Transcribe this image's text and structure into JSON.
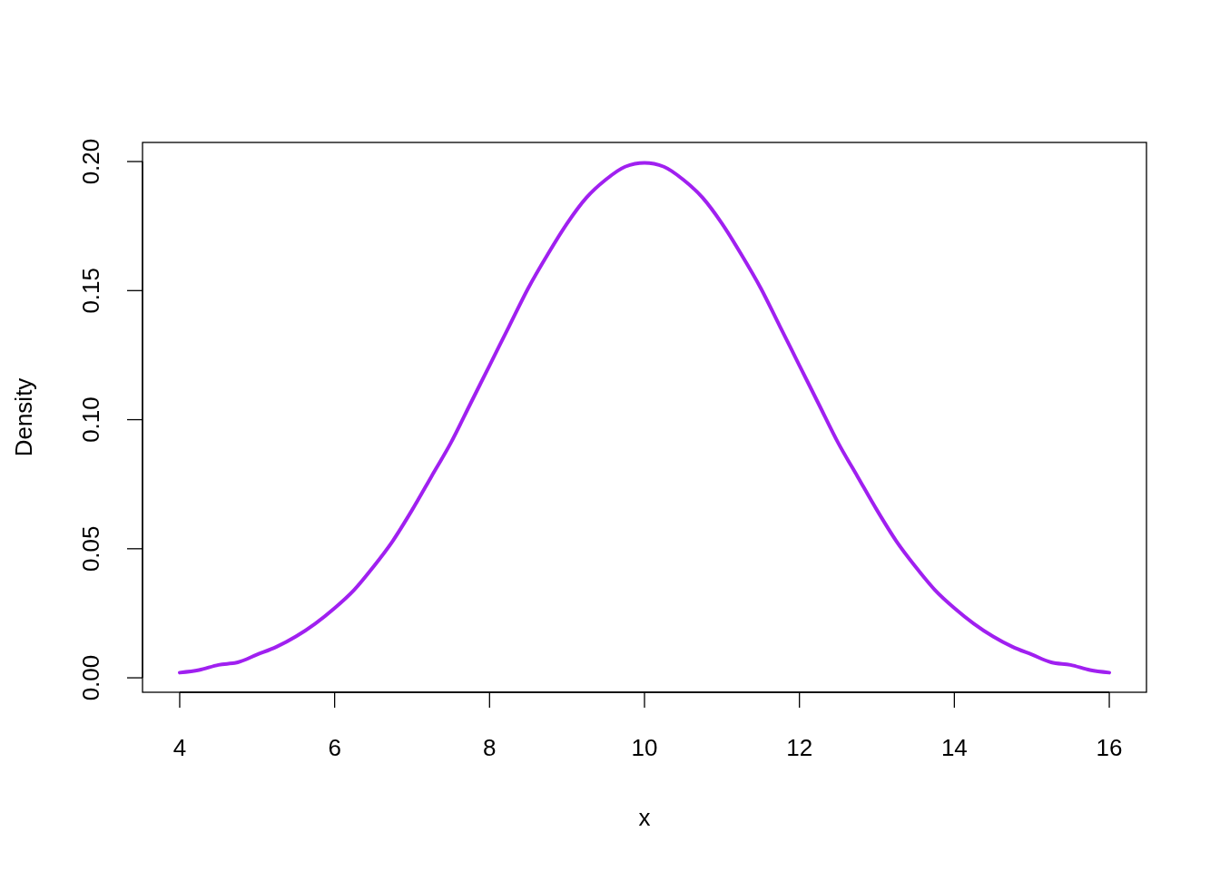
{
  "chart_data": {
    "type": "line",
    "xlabel": "x",
    "ylabel": "Density",
    "xlim": [
      3.52,
      16.48
    ],
    "ylim": [
      -0.0056,
      0.2074
    ],
    "xticks": [
      4,
      6,
      8,
      10,
      12,
      14,
      16
    ],
    "yticks": [
      {
        "value": 0,
        "label": "0.00"
      },
      {
        "value": 0.05,
        "label": "0.05"
      },
      {
        "value": 0.1,
        "label": "0.10"
      },
      {
        "value": 0.15,
        "label": "0.15"
      },
      {
        "value": 0.2,
        "label": "0.20"
      }
    ],
    "grid": false,
    "marker": "none",
    "line_style": "solid",
    "series": [
      {
        "color": "#a020f0",
        "x": [
          4,
          4.25,
          4.5,
          4.75,
          5,
          5.25,
          5.5,
          5.75,
          6,
          6.25,
          6.5,
          6.75,
          7,
          7.25,
          7.5,
          7.75,
          8,
          8.25,
          8.5,
          8.75,
          9,
          9.25,
          9.5,
          9.75,
          10,
          10.25,
          10.5,
          10.75,
          11,
          11.25,
          11.5,
          11.75,
          12,
          12.25,
          12.5,
          12.75,
          13,
          13.25,
          13.5,
          13.75,
          14,
          14.25,
          14.5,
          14.75,
          15,
          15.25,
          15.5,
          15.75,
          16
        ],
        "values": [
          0.002,
          0.003,
          0.005,
          0.006,
          0.009,
          0.012,
          0.016,
          0.021,
          0.027,
          0.034,
          0.043,
          0.053,
          0.065,
          0.078,
          0.091,
          0.106,
          0.121,
          0.136,
          0.151,
          0.164,
          0.176,
          0.186,
          0.193,
          0.198,
          0.1995,
          0.198,
          0.193,
          0.186,
          0.176,
          0.164,
          0.151,
          0.136,
          0.121,
          0.106,
          0.091,
          0.078,
          0.065,
          0.053,
          0.043,
          0.034,
          0.027,
          0.021,
          0.016,
          0.012,
          0.009,
          0.006,
          0.005,
          0.003,
          0.002
        ]
      }
    ]
  }
}
